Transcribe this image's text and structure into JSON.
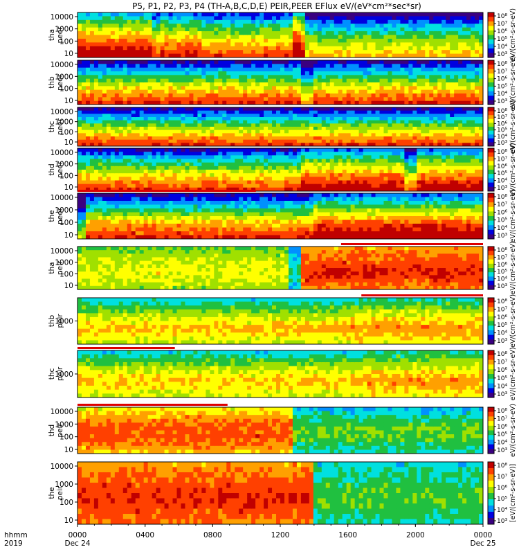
{
  "figure": {
    "title": "P5, P1, P2, P3, P4 (TH-A,B,C,D,E) PEIR,PEER EFlux eV/(eV*cm²*sec*sr)",
    "axis_row_label_top": "hhmm",
    "axis_row_label_bottom": "2019",
    "colorbar_label_main": "[eV/(cm²-s-sr-eV)]",
    "colorbar_label_repeat": "eV/(cm²-s-sr-eV)"
  },
  "chart_data": {
    "type": "heatmap",
    "x_axis": {
      "range": [
        "2019-12-24 00:00",
        "2019-12-25 00:00"
      ],
      "ticks": [
        {
          "value": "0000",
          "date": "Dec 24"
        },
        {
          "value": "0400",
          "date": ""
        },
        {
          "value": "0800",
          "date": ""
        },
        {
          "value": "1200",
          "date": ""
        },
        {
          "value": "1600",
          "date": ""
        },
        {
          "value": "2000",
          "date": ""
        },
        {
          "value": "0000",
          "date": "Dec 25"
        }
      ]
    },
    "colorbar": {
      "scale": "log",
      "colors": [
        "#3a0080",
        "#0000e0",
        "#0090ff",
        "#00e0e0",
        "#20c040",
        "#a0e000",
        "#ffff00",
        "#ffa000",
        "#ff4000",
        "#c00000"
      ]
    },
    "panels": [
      {
        "probe": "tha",
        "species": "peer",
        "yscale": "log",
        "yticks": [
          "10000",
          "1000",
          "100",
          "10"
        ],
        "cbticks": [
          "10⁸",
          "10⁷",
          "10⁶",
          "10⁵",
          "10⁴",
          "10³"
        ],
        "baseline": [
          0.16,
          0.45,
          0.68,
          0.86
        ],
        "events": [
          {
            "t": [
              0.0,
              0.18
            ],
            "v": 0.15
          },
          {
            "t": [
              0.2,
              0.3
            ],
            "v": 0.07
          },
          {
            "t": [
              0.53,
              0.56
            ],
            "v": 0.25
          },
          {
            "t": [
              0.55,
              1.0
            ],
            "v": -0.12
          }
        ],
        "flags": []
      },
      {
        "probe": "thb",
        "species": "peer",
        "yscale": "log",
        "yticks": [
          "10000",
          "1000",
          "100",
          "10"
        ],
        "cbticks": [
          "10⁸",
          "10⁷",
          "10⁶",
          "10⁵",
          "10⁴",
          "10³"
        ],
        "baseline": [
          0.1,
          0.4,
          0.68,
          0.9
        ],
        "events": [
          {
            "t": [
              0.55,
              0.58
            ],
            "v": -0.15
          }
        ],
        "flags": []
      },
      {
        "probe": "thc",
        "species": "peer",
        "yscale": "log",
        "yticks": [
          "10000",
          "1000",
          "100",
          "10"
        ],
        "cbticks": [
          "10⁸",
          "10⁷",
          "10⁶",
          "10⁵",
          "10⁴",
          "10³"
        ],
        "baseline": [
          0.08,
          0.38,
          0.66,
          0.88
        ],
        "events": [],
        "flags": []
      },
      {
        "probe": "thd",
        "species": "peer",
        "yscale": "log",
        "yticks": [
          "10000",
          "1000",
          "100",
          "10"
        ],
        "cbticks": [
          "10⁸",
          "10⁷",
          "10⁶",
          "10⁵",
          "10⁴",
          "10³"
        ],
        "baseline": [
          0.12,
          0.42,
          0.68,
          0.88
        ],
        "events": [
          {
            "t": [
              0.55,
              1.0
            ],
            "v": 0.12
          },
          {
            "t": [
              0.8,
              0.83
            ],
            "v": -0.2
          }
        ],
        "flags": []
      },
      {
        "probe": "the",
        "species": "peer",
        "yscale": "log",
        "yticks": [
          "10000",
          "1000",
          "100",
          "10"
        ],
        "cbticks": [
          "10⁸",
          "10⁷",
          "10⁶",
          "10⁵",
          "10⁴",
          "10³"
        ],
        "baseline": [
          0.1,
          0.4,
          0.72,
          0.9
        ],
        "events": [
          {
            "t": [
              0.58,
              1.0
            ],
            "v": 0.12
          },
          {
            "t": [
              0.0,
              0.02
            ],
            "v": -0.3
          }
        ],
        "flags": [
          {
            "t": [
              0.0,
              0.44
            ],
            "color": "#dd0000"
          }
        ]
      },
      {
        "probe": "tha",
        "species": "peir",
        "yscale": "log",
        "yticks": [
          "10000",
          "1000",
          "100",
          "10"
        ],
        "cbticks": [
          "10⁸",
          "10⁷",
          "10⁶",
          "10⁵",
          "10⁴",
          "10³"
        ],
        "baseline": [
          0.5,
          0.6,
          0.65,
          0.55
        ],
        "events": [
          {
            "t": [
              0.55,
              1.0
            ],
            "v": 0.25
          },
          {
            "t": [
              0.52,
              0.55
            ],
            "v": -0.25
          }
        ],
        "flags": [
          {
            "t": [
              0.65,
              1.0
            ],
            "color": "#dd0000"
          }
        ]
      },
      {
        "probe": "thb",
        "species": "peir",
        "yscale": "log",
        "yticks": [
          "1000"
        ],
        "cbticks": [
          "10⁸",
          "10⁷",
          "10⁶",
          "10⁵",
          "10⁴",
          "10³"
        ],
        "baseline": [
          0.35,
          0.55,
          0.72,
          0.6
        ],
        "events": [
          {
            "t": [
              0.65,
              1.0
            ],
            "v": 0.05
          }
        ],
        "flags": [
          {
            "t": [
              0.7,
              1.0
            ],
            "color": "#dd0000"
          }
        ]
      },
      {
        "probe": "thc",
        "species": "peir",
        "yscale": "log",
        "yticks": [
          "1000"
        ],
        "cbticks": [
          "10⁸",
          "10⁷",
          "10⁶",
          "10⁵",
          "10⁴",
          "10³"
        ],
        "baseline": [
          0.35,
          0.55,
          0.72,
          0.6
        ],
        "events": [
          {
            "t": [
              0.7,
              1.0
            ],
            "v": 0.05
          }
        ],
        "flags": [
          {
            "t": [
              0.0,
              0.24
            ],
            "color": "#dd0000"
          }
        ]
      },
      {
        "probe": "thd",
        "species": "peir",
        "yscale": "log",
        "yticks": [
          "10000",
          "1000",
          "100",
          "10"
        ],
        "cbticks": [
          "10⁸",
          "10⁷",
          "10⁶",
          "10⁵",
          "10⁴",
          "10³"
        ],
        "baseline": [
          0.65,
          0.82,
          0.85,
          0.72
        ],
        "events": [
          {
            "t": [
              0.53,
              1.0
            ],
            "v": -0.35
          }
        ],
        "flags": [
          {
            "t": [
              0.0,
              0.37
            ],
            "color": "#dd0000"
          }
        ]
      },
      {
        "probe": "the",
        "species": "peir",
        "yscale": "log",
        "yticks": [
          "10000",
          "1000",
          "100",
          "10"
        ],
        "cbticks": [
          "10⁸",
          "10⁷",
          "10⁶",
          "10⁵",
          "10⁴",
          "10³"
        ],
        "baseline": [
          0.75,
          0.85,
          0.88,
          0.8
        ],
        "events": [
          {
            "t": [
              0.58,
              1.0
            ],
            "v": -0.4
          }
        ],
        "flags": []
      }
    ]
  }
}
